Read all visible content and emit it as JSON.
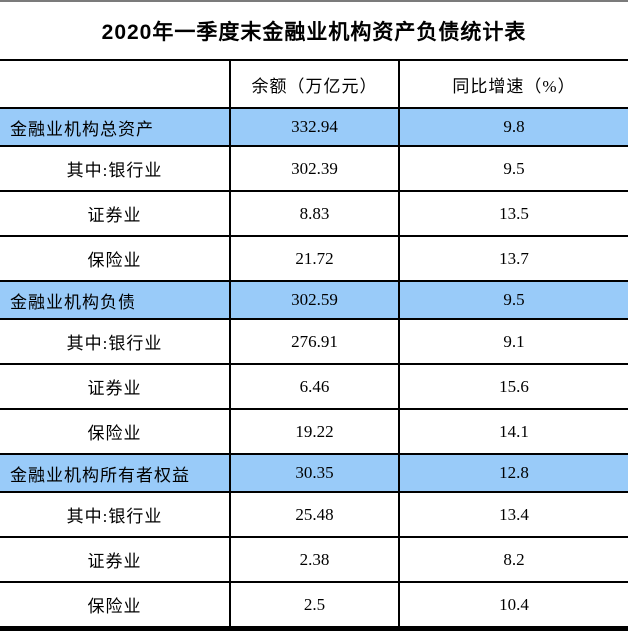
{
  "title": "2020年一季度末金融业机构资产负债统计表",
  "table": {
    "columns": [
      "",
      "余额（万亿元）",
      "同比增速（%）"
    ],
    "rows": [
      {
        "label": "金融业机构总资产",
        "balance": "332.94",
        "growth": "9.8",
        "highlight": true
      },
      {
        "label": "其中:银行业",
        "balance": "302.39",
        "growth": "9.5",
        "highlight": false
      },
      {
        "label": "证券业",
        "balance": "8.83",
        "growth": "13.5",
        "highlight": false
      },
      {
        "label": "保险业",
        "balance": "21.72",
        "growth": "13.7",
        "highlight": false
      },
      {
        "label": "金融业机构负债",
        "balance": "302.59",
        "growth": "9.5",
        "highlight": true
      },
      {
        "label": "其中:银行业",
        "balance": "276.91",
        "growth": "9.1",
        "highlight": false
      },
      {
        "label": "证券业",
        "balance": "6.46",
        "growth": "15.6",
        "highlight": false
      },
      {
        "label": "保险业",
        "balance": "19.22",
        "growth": "14.1",
        "highlight": false
      },
      {
        "label": "金融业机构所有者权益",
        "balance": "30.35",
        "growth": "12.8",
        "highlight": true
      },
      {
        "label": "其中:银行业",
        "balance": "25.48",
        "growth": "13.4",
        "highlight": false
      },
      {
        "label": "证券业",
        "balance": "2.38",
        "growth": "8.2",
        "highlight": false
      },
      {
        "label": "保险业",
        "balance": "2.5",
        "growth": "10.4",
        "highlight": false
      }
    ]
  },
  "colors": {
    "highlight": "#99CBF9",
    "border": "#000000",
    "top_line": "#7B7B7B"
  }
}
